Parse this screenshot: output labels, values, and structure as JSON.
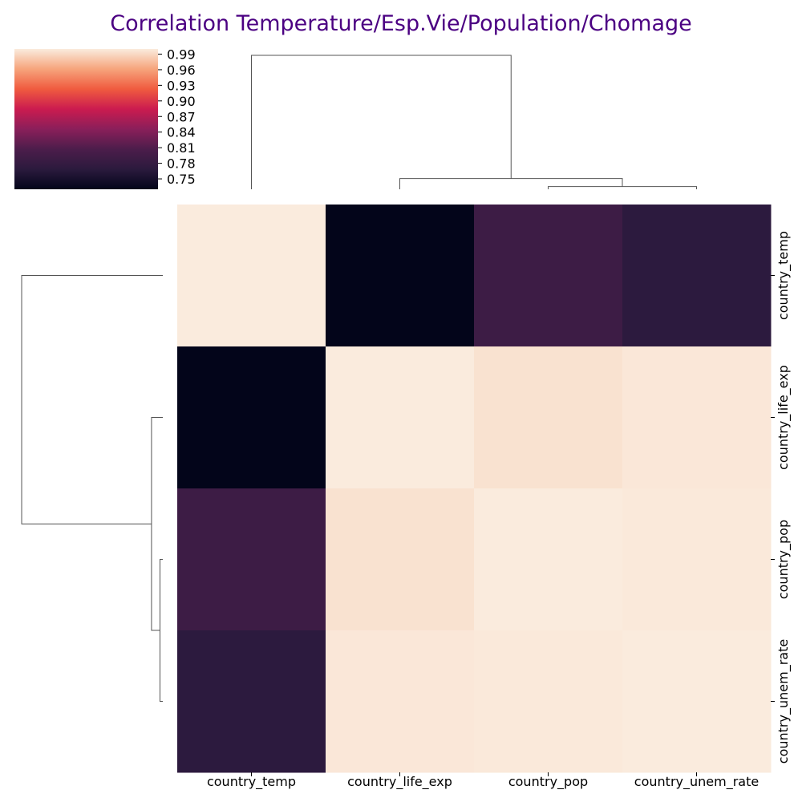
{
  "chart_data": {
    "type": "heatmap",
    "kind": "clustermap",
    "title": "Correlation Temperature/Esp.Vie/Population/Chomage",
    "colormap": "rocket",
    "colors": {
      "title": "#4b0082",
      "dendrogram": "#555555",
      "colormap_stops": [
        "#03051a",
        "#2b1a3d",
        "#4c1d4b",
        "#8a1f5a",
        "#cb1b4f",
        "#f05b3f",
        "#f6a47c",
        "#faebdd"
      ]
    },
    "row_labels": [
      "country_temp",
      "country_life_exp",
      "country_pop",
      "country_unem_rate"
    ],
    "col_labels": [
      "country_temp",
      "country_life_exp",
      "country_pop",
      "country_unem_rate"
    ],
    "values": [
      [
        1.0,
        0.73,
        0.79,
        0.77
      ],
      [
        0.73,
        1.0,
        0.995,
        0.998
      ],
      [
        0.79,
        0.995,
        1.0,
        0.999
      ],
      [
        0.77,
        0.998,
        0.999,
        1.0
      ]
    ],
    "colorbar": {
      "vmin": 0.73,
      "vmax": 1.0,
      "ticks": [
        0.99,
        0.96,
        0.93,
        0.9,
        0.87,
        0.84,
        0.81,
        0.78,
        0.75
      ],
      "tick_labels": [
        "0.99",
        "0.96",
        "0.93",
        "0.90",
        "0.87",
        "0.84",
        "0.81",
        "0.78",
        "0.75"
      ]
    },
    "dendrogram_links": [
      {
        "left": "country_pop",
        "right": "country_unem_rate",
        "height": 0.02
      },
      {
        "left": "country_life_exp",
        "right": "country_pop+country_unem_rate",
        "height": 0.08
      },
      {
        "left": "country_temp",
        "right": "country_life_exp+country_pop+country_unem_rate",
        "height": 1.0
      }
    ]
  }
}
